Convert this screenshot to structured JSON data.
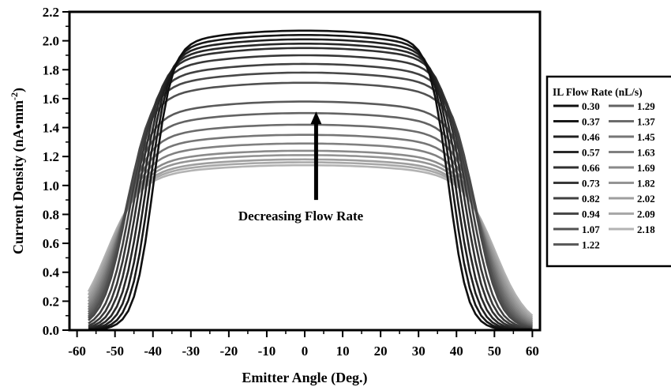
{
  "chart_data": {
    "type": "line",
    "title": "",
    "xlabel": "Emitter Angle (Deg.)",
    "ylabel_main": "Current Density (nA•mm",
    "ylabel_exp": "-2",
    "ylabel_close": ")",
    "xlim": [
      -62,
      62
    ],
    "ylim": [
      0,
      2.2
    ],
    "xticks": [
      -60,
      -50,
      -40,
      -30,
      -20,
      -10,
      0,
      10,
      20,
      30,
      40,
      50,
      60
    ],
    "xtick_labels": [
      "-60",
      "-50",
      "-40",
      "-30",
      "-20",
      "-10",
      "0",
      "10",
      "20",
      "30",
      "40",
      "50",
      "60"
    ],
    "yticks": [
      0,
      0.2,
      0.4,
      0.6,
      0.8,
      1.0,
      1.2,
      1.4,
      1.6,
      1.8,
      2.0,
      2.2
    ],
    "ytick_labels": [
      "0.0",
      "0.2",
      "0.4",
      "0.6",
      "0.8",
      "1.0",
      "1.2",
      "1.4",
      "1.6",
      "1.8",
      "2.0",
      "2.2"
    ],
    "grid": false,
    "legend": {
      "title": "IL Flow Rate (nL/s)",
      "placement": "right"
    },
    "annotation": {
      "text": "Decreasing Flow Rate",
      "arrow_x": 3,
      "arrow_y_from": 0.9,
      "arrow_y_to": 1.5
    },
    "series": [
      {
        "name": "0.30",
        "color": "#101010",
        "wl": 40,
        "wr": 38,
        "sl": 2.5,
        "sr": 2.5,
        "peak": 2.07
      },
      {
        "name": "0.37",
        "color": "#181818",
        "wl": 41,
        "wr": 39,
        "sl": 2.6,
        "sr": 2.6,
        "peak": 2.04
      },
      {
        "name": "0.46",
        "color": "#202020",
        "wl": 42,
        "wr": 40,
        "sl": 2.7,
        "sr": 2.7,
        "peak": 2.01
      },
      {
        "name": "0.57",
        "color": "#282828",
        "wl": 43,
        "wr": 41,
        "sl": 2.8,
        "sr": 2.8,
        "peak": 1.98
      },
      {
        "name": "0.66",
        "color": "#303030",
        "wl": 44,
        "wr": 42,
        "sl": 2.9,
        "sr": 2.9,
        "peak": 1.95
      },
      {
        "name": "0.73",
        "color": "#383838",
        "wl": 45,
        "wr": 43,
        "sl": 3.0,
        "sr": 3.0,
        "peak": 1.9
      },
      {
        "name": "0.82",
        "color": "#404040",
        "wl": 46,
        "wr": 44,
        "sl": 3.1,
        "sr": 3.1,
        "peak": 1.84
      },
      {
        "name": "0.94",
        "color": "#484848",
        "wl": 47,
        "wr": 45,
        "sl": 3.2,
        "sr": 3.2,
        "peak": 1.78
      },
      {
        "name": "1.07",
        "color": "#515151",
        "wl": 47.5,
        "wr": 45.5,
        "sl": 3.3,
        "sr": 3.3,
        "peak": 1.71
      },
      {
        "name": "1.22",
        "color": "#5a5a5a",
        "wl": 48,
        "wr": 46,
        "sl": 3.4,
        "sr": 3.4,
        "peak": 1.58
      },
      {
        "name": "1.29",
        "color": "#636363",
        "wl": 48.5,
        "wr": 46.5,
        "sl": 3.5,
        "sr": 3.5,
        "peak": 1.5
      },
      {
        "name": "1.37",
        "color": "#6c6c6c",
        "wl": 49,
        "wr": 47,
        "sl": 3.6,
        "sr": 3.6,
        "peak": 1.42
      },
      {
        "name": "1.45",
        "color": "#767676",
        "wl": 49.5,
        "wr": 47.5,
        "sl": 3.7,
        "sr": 3.7,
        "peak": 1.35
      },
      {
        "name": "1.63",
        "color": "#808080",
        "wl": 50,
        "wr": 48,
        "sl": 3.8,
        "sr": 3.8,
        "peak": 1.29
      },
      {
        "name": "1.69",
        "color": "#8a8a8a",
        "wl": 50.5,
        "wr": 48.5,
        "sl": 3.9,
        "sr": 3.9,
        "peak": 1.24
      },
      {
        "name": "1.82",
        "color": "#949494",
        "wl": 51,
        "wr": 49,
        "sl": 4.0,
        "sr": 4.0,
        "peak": 1.21
      },
      {
        "name": "2.02",
        "color": "#9e9e9e",
        "wl": 51.5,
        "wr": 49.5,
        "sl": 4.1,
        "sr": 4.1,
        "peak": 1.18
      },
      {
        "name": "2.09",
        "color": "#a8a8a8",
        "wl": 52,
        "wr": 50,
        "sl": 4.2,
        "sr": 4.2,
        "peak": 1.16
      },
      {
        "name": "2.18",
        "color": "#b3b3b3",
        "wl": 52.5,
        "wr": 50.5,
        "sl": 4.3,
        "sr": 4.3,
        "peak": 1.14
      }
    ]
  }
}
